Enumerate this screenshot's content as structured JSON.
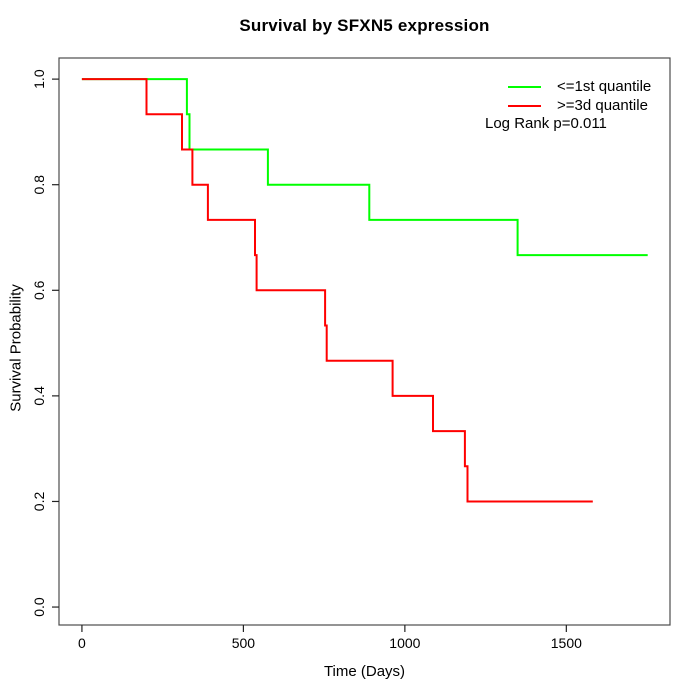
{
  "chart_data": {
    "type": "line",
    "subtype": "kaplan-meier-step",
    "title": "Survival by SFXN5 expression",
    "xlabel": "Time (Days)",
    "ylabel": "Survival Probability",
    "xlim": [
      -71,
      1821
    ],
    "ylim": [
      -0.034,
      1.04
    ],
    "x_ticks": [
      0,
      500,
      1000,
      1500
    ],
    "x_tick_labels": [
      "0",
      "500",
      "1000",
      "1500"
    ],
    "y_ticks": [
      0.0,
      0.2,
      0.4,
      0.6,
      0.8,
      1.0
    ],
    "y_tick_labels": [
      "0.0",
      "0.2",
      "0.4",
      "0.6",
      "0.8",
      "1.0"
    ],
    "grid": false,
    "legend_position": "top-right",
    "annotation": "Log Rank p=0.011",
    "frame_color": "#4c4c4c",
    "tick_color": "#222222",
    "series": [
      {
        "name": "<=1st quantile",
        "color": "#00FF00",
        "t": [
          0,
          325,
          333,
          576,
          890,
          1349,
          1752
        ],
        "s": [
          1.0,
          0.9333,
          0.8667,
          0.8,
          0.7333,
          0.6667,
          0.6667
        ]
      },
      {
        "name": ">=3d quantile",
        "color": "#FF0000",
        "t": [
          0,
          200,
          310,
          342,
          390,
          536,
          541,
          753,
          758,
          962,
          1087,
          1186,
          1194,
          1582
        ],
        "s": [
          1.0,
          0.9333,
          0.8667,
          0.8,
          0.7333,
          0.6667,
          0.6,
          0.5333,
          0.4667,
          0.4,
          0.3333,
          0.2667,
          0.2,
          0.2
        ]
      }
    ]
  }
}
